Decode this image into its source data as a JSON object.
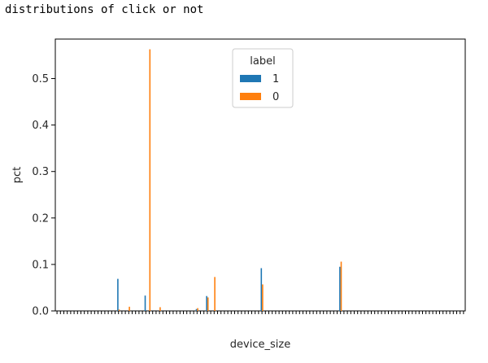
{
  "output_text": "distributions of click or not",
  "chart_data": {
    "type": "bar",
    "xlabel": "device_size",
    "ylabel": "pct",
    "ylim": [
      0,
      0.585
    ],
    "yticks": [
      0.0,
      0.1,
      0.2,
      0.3,
      0.4,
      0.5
    ],
    "ytick_labels": [
      "0.0",
      "0.1",
      "0.2",
      "0.3",
      "0.4",
      "0.5"
    ],
    "category_count": 120,
    "legend": {
      "title": "label",
      "position": "top-center"
    },
    "series": [
      {
        "name": "1",
        "color": "#1f77b4",
        "values": [
          0,
          0,
          0,
          0,
          0,
          0,
          0,
          0,
          0,
          0,
          0,
          0,
          0,
          0,
          0,
          0,
          0,
          0,
          0.069,
          0,
          0,
          0,
          0,
          0,
          0,
          0,
          0.033,
          0,
          0,
          0,
          0,
          0,
          0,
          0,
          0,
          0,
          0,
          0,
          0,
          0,
          0,
          0.004,
          0,
          0,
          0.032,
          0,
          0,
          0,
          0,
          0,
          0,
          0,
          0,
          0,
          0,
          0,
          0,
          0,
          0,
          0,
          0.092,
          0,
          0,
          0,
          0,
          0,
          0,
          0,
          0,
          0,
          0,
          0,
          0,
          0,
          0,
          0,
          0,
          0,
          0,
          0,
          0,
          0,
          0,
          0.095,
          0,
          0,
          0,
          0,
          0,
          0,
          0,
          0,
          0,
          0,
          0,
          0,
          0,
          0,
          0,
          0,
          0,
          0,
          0,
          0,
          0,
          0,
          0,
          0,
          0,
          0,
          0,
          0,
          0,
          0,
          0,
          0,
          0,
          0,
          0,
          0
        ]
      },
      {
        "name": "0",
        "color": "#ff7f0e",
        "values": [
          0,
          0,
          0,
          0,
          0,
          0,
          0,
          0,
          0,
          0,
          0,
          0,
          0,
          0,
          0,
          0,
          0,
          0,
          0.003,
          0,
          0,
          0.009,
          0,
          0,
          0,
          0,
          0,
          0.563,
          0,
          0,
          0.008,
          0,
          0,
          0,
          0,
          0,
          0,
          0,
          0,
          0,
          0,
          0.006,
          0,
          0,
          0.029,
          0,
          0.073,
          0,
          0,
          0,
          0,
          0,
          0,
          0,
          0,
          0,
          0,
          0,
          0,
          0,
          0.057,
          0,
          0,
          0,
          0,
          0,
          0,
          0,
          0,
          0,
          0,
          0,
          0,
          0,
          0,
          0,
          0,
          0,
          0,
          0,
          0,
          0,
          0,
          0.106,
          0,
          0,
          0,
          0,
          0,
          0,
          0,
          0,
          0,
          0,
          0,
          0,
          0,
          0,
          0,
          0,
          0,
          0,
          0,
          0,
          0,
          0,
          0,
          0,
          0,
          0,
          0,
          0,
          0,
          0,
          0,
          0,
          0,
          0,
          0,
          0
        ]
      }
    ]
  }
}
